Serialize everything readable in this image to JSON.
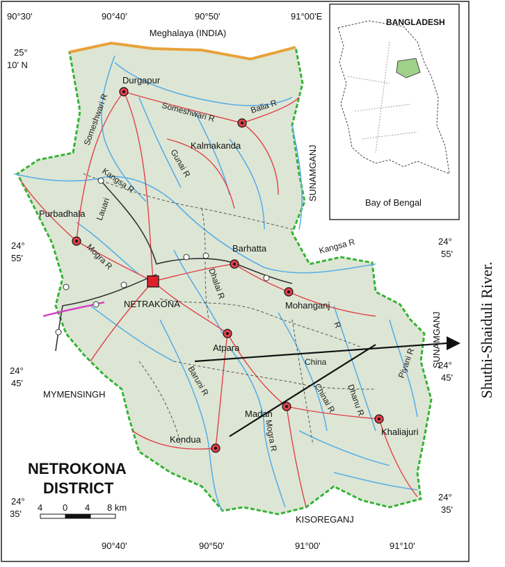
{
  "map": {
    "title_line1": "NETROKONA",
    "title_line2": "DISTRICT",
    "scale": {
      "labels": [
        "4",
        "0",
        "4",
        "8 km"
      ]
    },
    "coords_top": [
      "90°30'",
      "90°40'",
      "90°50'",
      "91°00'E"
    ],
    "coords_bottom": [
      "90°40'",
      "90°50'",
      "91°00'",
      "91°10'"
    ],
    "coords_left": [
      {
        "deg": "25°",
        "min": "10' N"
      },
      {
        "deg": "24°",
        "min": "55'"
      },
      {
        "deg": "24°",
        "min": "45'"
      },
      {
        "deg": "24°",
        "min": "35'"
      }
    ],
    "coords_right": [
      {
        "deg": "24°",
        "min": "55'"
      },
      {
        "deg": "24°",
        "min": "45'"
      },
      {
        "deg": "24°",
        "min": "35'"
      }
    ],
    "neighbors": {
      "north": "Meghalaya (INDIA)",
      "east": "SUNAMGANJ",
      "east2": "SUNAMGANJ",
      "west": "MYMENSINGH",
      "south": "KISOREGANJ"
    },
    "places": {
      "district_hq": "NETRAKONA",
      "upazilas": [
        "Durgapur",
        "Kalmakanda",
        "Purbadhala",
        "Barhatta",
        "Mohanganj",
        "Atpara",
        "Madan",
        "Kendua",
        "Khaliajuri"
      ]
    },
    "rivers": {
      "someshwari_1": "Someshwari R",
      "someshwari_2": "Someshwari R",
      "balia": "Balia R",
      "kangsa_1": "Kangsa R",
      "kangsa_2": "Kangsa R",
      "gunai": "Gunai R",
      "lauari": "Lauari",
      "mogra_1": "Mogra R",
      "mogra_2": "Mogra R",
      "dhalai": "Dhalai R",
      "china": "China",
      "r1": "R",
      "chinai": "Chinai R",
      "dhanu": "Dhanu R",
      "baruni": "Baruni R",
      "piyani": "Piyani R"
    },
    "inset": {
      "title": "BANGLADESH",
      "caption": "Bay of Bengal"
    }
  },
  "annotation": {
    "label": "Shuthi-Shaiduli River."
  },
  "colors": {
    "land": "#dde6d4",
    "river": "#5aaee6",
    "road": "#e0404a",
    "rail": "#333333",
    "border_green": "#35b335",
    "border_orange": "#e8a23a",
    "highlight": "#9fd18a"
  }
}
